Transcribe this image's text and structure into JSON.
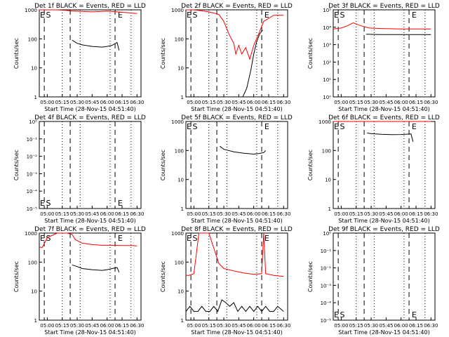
{
  "chart_data": [
    {
      "type": "line",
      "title": "Det 1f BLACK = Events, RED = LLD",
      "xlabel": "Start Time (28-Nov-15 04:51:40)",
      "ylabel": "Counts/sec",
      "yscale": "log",
      "ylim": [
        1,
        1000
      ],
      "xlim": [
        "04:52",
        "06:34"
      ],
      "x_ticks": [
        "05:00",
        "05:15",
        "05:30",
        "05:45",
        "06:00",
        "06:15",
        "06:30"
      ],
      "y_ticks": [
        "1",
        "10",
        "100",
        "1000"
      ],
      "markers": [
        {
          "label": "E",
          "x": "04:52"
        },
        {
          "label": "S",
          "x": "04:58"
        },
        {
          "label": "E",
          "x": "06:10"
        }
      ],
      "series": [
        {
          "color": "#ff0000",
          "x": [
            "04:52",
            "05:00",
            "05:10",
            "05:20",
            "05:25",
            "05:28",
            "05:35",
            "05:45",
            "05:55",
            "06:00",
            "06:10",
            "06:20",
            "06:30"
          ],
          "y": [
            1000,
            1000,
            1000,
            950,
            900,
            900,
            880,
            850,
            880,
            900,
            850,
            800,
            750
          ]
        },
        {
          "color": "#000000",
          "x": [
            "05:25",
            "05:30",
            "05:35",
            "05:45",
            "05:55",
            "06:00",
            "06:05",
            "06:10",
            "06:12"
          ],
          "y": [
            90,
            70,
            62,
            55,
            52,
            55,
            60,
            75,
            40
          ]
        }
      ]
    },
    {
      "type": "line",
      "title": "Det 2f BLACK = Events, RED = LLD",
      "xlabel": "Start Time (28-Nov-15 04:51:40)",
      "ylabel": "Counts/sec",
      "yscale": "log",
      "ylim": [
        1,
        1000
      ],
      "xlim": [
        "04:52",
        "06:34"
      ],
      "x_ticks": [
        "05:00",
        "05:15",
        "05:30",
        "05:45",
        "06:00",
        "06:15",
        "06:30"
      ],
      "y_ticks": [
        "1",
        "10",
        "100",
        "1000"
      ],
      "markers": [
        {
          "label": "E",
          "x": "04:52"
        },
        {
          "label": "S",
          "x": "04:58"
        },
        {
          "label": "E",
          "x": "06:10"
        }
      ],
      "series": [
        {
          "color": "#ff0000",
          "x": [
            "04:52",
            "05:00",
            "05:05",
            "05:15",
            "05:25",
            "05:30",
            "05:35",
            "05:40",
            "05:42",
            "05:45",
            "05:48",
            "05:52",
            "05:56",
            "06:00",
            "06:05",
            "06:10",
            "06:20",
            "06:30"
          ],
          "y": [
            1000,
            1000,
            950,
            850,
            700,
            400,
            150,
            70,
            30,
            60,
            30,
            50,
            20,
            60,
            150,
            400,
            650,
            650
          ]
        },
        {
          "color": "#000000",
          "x": [
            "05:49",
            "05:53",
            "05:57",
            "06:00",
            "06:03",
            "06:06",
            "06:09"
          ],
          "y": [
            1,
            2,
            8,
            30,
            80,
            150,
            200
          ]
        }
      ]
    },
    {
      "type": "line",
      "title": "Det 3f BLACK = Events, RED = LLD",
      "xlabel": "Start Time (28-Nov-15 04:51:40)",
      "ylabel": "Counts/sec",
      "yscale": "log",
      "ylim": [
        1,
        100000
      ],
      "xlim": [
        "04:52",
        "06:34"
      ],
      "x_ticks": [
        "05:00",
        "05:15",
        "05:30",
        "05:45",
        "06:00",
        "06:15",
        "06:30"
      ],
      "y_ticks": [
        "10^0",
        "10^1",
        "10^2",
        "10^3",
        "10^4",
        "10^5"
      ],
      "markers": [
        {
          "label": "E",
          "x": "04:52"
        },
        {
          "label": "S",
          "x": "04:58"
        },
        {
          "label": "E",
          "x": "06:10"
        }
      ],
      "series": [
        {
          "color": "#ff0000",
          "x": [
            "04:52",
            "05:00",
            "05:06",
            "05:12",
            "05:20",
            "05:28",
            "05:40",
            "06:00",
            "06:30"
          ],
          "y": [
            8000,
            9000,
            12000,
            18000,
            12000,
            9000,
            8500,
            8000,
            8000
          ]
        },
        {
          "color": "#000000",
          "x": [
            "05:25",
            "05:40",
            "05:55",
            "06:10",
            "06:30"
          ],
          "y": [
            4000,
            3800,
            3800,
            3800,
            3800
          ]
        }
      ]
    },
    {
      "type": "line",
      "title": "Det 4f BLACK = Events, RED = LLD",
      "xlabel": "Start Time (28-Nov-15 04:51:40)",
      "ylabel": "Counts/sec",
      "yscale": "log",
      "ylim": [
        1e-05,
        1
      ],
      "xlim": [
        "04:52",
        "06:34"
      ],
      "x_ticks": [
        "05:00",
        "05:15",
        "05:30",
        "05:45",
        "06:00",
        "06:15",
        "06:30"
      ],
      "y_ticks": [
        "10^-5",
        "10^-4",
        "10^-3",
        "10^-2",
        "10^-1",
        "10^0"
      ],
      "markers": [
        {
          "label": "E",
          "x": "04:52"
        },
        {
          "label": "S",
          "x": "04:58"
        },
        {
          "label": "E",
          "x": "06:10"
        }
      ],
      "series": []
    },
    {
      "type": "line",
      "title": "Det 5f BLACK = Events, RED = LLD",
      "xlabel": "Start Time (28-Nov-15 04:51:40)",
      "ylabel": "Counts/sec",
      "yscale": "log",
      "ylim": [
        1,
        1000
      ],
      "xlim": [
        "04:52",
        "06:34"
      ],
      "x_ticks": [
        "05:00",
        "05:15",
        "05:30",
        "05:45",
        "06:00",
        "06:15",
        "06:30"
      ],
      "y_ticks": [
        "1",
        "10",
        "100",
        "1000"
      ],
      "markers": [
        {
          "label": "E",
          "x": "04:52"
        },
        {
          "label": "S",
          "x": "04:58"
        },
        {
          "label": "E",
          "x": "06:10"
        }
      ],
      "series": [
        {
          "color": "#000000",
          "x": [
            "05:26",
            "05:30",
            "05:40",
            "05:50",
            "06:00",
            "06:05",
            "06:10",
            "06:12"
          ],
          "y": [
            140,
            110,
            90,
            80,
            75,
            78,
            85,
            100
          ]
        }
      ]
    },
    {
      "type": "line",
      "title": "Det 6f BLACK = Events, RED = LLD",
      "xlabel": "Start Time (28-Nov-15 04:51:40)",
      "ylabel": "Counts/sec",
      "yscale": "log",
      "ylim": [
        1,
        1000
      ],
      "xlim": [
        "04:52",
        "06:34"
      ],
      "x_ticks": [
        "05:00",
        "05:15",
        "05:30",
        "05:45",
        "06:00",
        "06:15",
        "06:30"
      ],
      "y_ticks": [
        "1",
        "10",
        "100",
        "1000"
      ],
      "markers": [
        {
          "label": "E",
          "x": "04:52"
        },
        {
          "label": "S",
          "x": "04:58"
        },
        {
          "label": "E",
          "x": "06:10"
        }
      ],
      "series": [
        {
          "color": "#ff0000",
          "x": [
            "04:52",
            "05:00",
            "05:07",
            "05:13",
            "05:18",
            "05:24",
            "05:30",
            "06:00",
            "06:30"
          ],
          "y": [
            1000,
            1000,
            1000,
            1000,
            1000,
            1000,
            1000,
            1000,
            1000
          ]
        },
        {
          "color": "#000000",
          "x": [
            "05:26",
            "05:30",
            "05:40",
            "05:50",
            "06:00",
            "06:10",
            "06:12"
          ],
          "y": [
            400,
            380,
            360,
            350,
            355,
            370,
            200
          ]
        }
      ]
    },
    {
      "type": "line",
      "title": "Det 7f BLACK = Events, RED = LLD",
      "xlabel": "Start Time (28-Nov-15 04:51:40)",
      "ylabel": "Counts/sec",
      "yscale": "log",
      "ylim": [
        1,
        1000
      ],
      "xlim": [
        "04:52",
        "06:34"
      ],
      "x_ticks": [
        "05:00",
        "05:15",
        "05:30",
        "05:45",
        "06:00",
        "06:15",
        "06:30"
      ],
      "y_ticks": [
        "1",
        "10",
        "100",
        "1000"
      ],
      "markers": [
        {
          "label": "E",
          "x": "04:52"
        },
        {
          "label": "S",
          "x": "04:58"
        },
        {
          "label": "E",
          "x": "06:10"
        }
      ],
      "series": [
        {
          "color": "#ff0000",
          "x": [
            "04:52",
            "04:55",
            "05:00",
            "05:10",
            "05:20",
            "05:25",
            "05:28",
            "05:35",
            "05:45",
            "05:55",
            "06:05",
            "06:15",
            "06:25",
            "06:30"
          ],
          "y": [
            330,
            320,
            700,
            1000,
            1000,
            900,
            600,
            450,
            400,
            380,
            380,
            370,
            370,
            360
          ]
        },
        {
          "color": "#000000",
          "x": [
            "05:25",
            "05:30",
            "05:35",
            "05:45",
            "05:55",
            "06:00",
            "06:05",
            "06:10",
            "06:12"
          ],
          "y": [
            80,
            70,
            60,
            55,
            52,
            55,
            60,
            65,
            45
          ]
        }
      ]
    },
    {
      "type": "line",
      "title": "Det 8f BLACK = Events, RED = LLD",
      "xlabel": "Start Time (28-Nov-15 04:51:40)",
      "ylabel": "Counts/sec",
      "yscale": "log",
      "ylim": [
        1,
        1000
      ],
      "xlim": [
        "04:52",
        "06:34"
      ],
      "x_ticks": [
        "05:00",
        "05:15",
        "05:30",
        "05:45",
        "06:00",
        "06:15",
        "06:30"
      ],
      "y_ticks": [
        "1",
        "10",
        "100",
        "1000"
      ],
      "markers": [
        {
          "label": "E",
          "x": "04:52"
        },
        {
          "label": "S",
          "x": "04:58"
        },
        {
          "label": "E",
          "x": "06:10"
        }
      ],
      "series": [
        {
          "color": "#ff0000",
          "x": [
            "04:52",
            "04:55",
            "05:00",
            "05:05",
            "05:15",
            "05:25",
            "05:30",
            "05:40",
            "05:50",
            "06:00",
            "06:08",
            "06:10",
            "06:12",
            "06:20",
            "06:30"
          ],
          "y": [
            35,
            35,
            40,
            1000,
            1000,
            90,
            60,
            50,
            42,
            38,
            40,
            1000,
            40,
            35,
            32
          ]
        },
        {
          "color": "#000000",
          "x": [
            "04:52",
            "04:56",
            "05:00",
            "05:04",
            "05:08",
            "05:12",
            "05:16",
            "05:20",
            "05:24",
            "05:28",
            "05:32",
            "05:36",
            "05:40",
            "05:44",
            "05:48",
            "05:52",
            "05:56",
            "06:00",
            "06:04",
            "06:08",
            "06:12",
            "06:16",
            "06:20",
            "06:24",
            "06:30"
          ],
          "y": [
            2,
            3,
            2,
            2,
            3,
            2,
            2,
            3,
            2,
            5,
            4,
            3,
            4,
            2,
            3,
            2,
            3,
            2,
            3,
            2,
            3,
            2,
            2,
            3,
            2
          ]
        }
      ]
    },
    {
      "type": "line",
      "title": "Det 9f BLACK = Events, RED = LLD",
      "xlabel": "Start Time (28-Nov-15 04:51:40)",
      "ylabel": "Counts/sec",
      "yscale": "log",
      "ylim": [
        1e-05,
        1
      ],
      "xlim": [
        "04:52",
        "06:34"
      ],
      "x_ticks": [
        "05:00",
        "05:15",
        "05:30",
        "05:45",
        "06:00",
        "06:15",
        "06:30"
      ],
      "y_ticks": [
        "10^-5",
        "10^-4",
        "10^-3",
        "10^-2",
        "10^-1",
        "10^0"
      ],
      "markers": [
        {
          "label": "E",
          "x": "04:52"
        },
        {
          "label": "S",
          "x": "04:58"
        },
        {
          "label": "E",
          "x": "06:10"
        }
      ],
      "series": []
    }
  ]
}
